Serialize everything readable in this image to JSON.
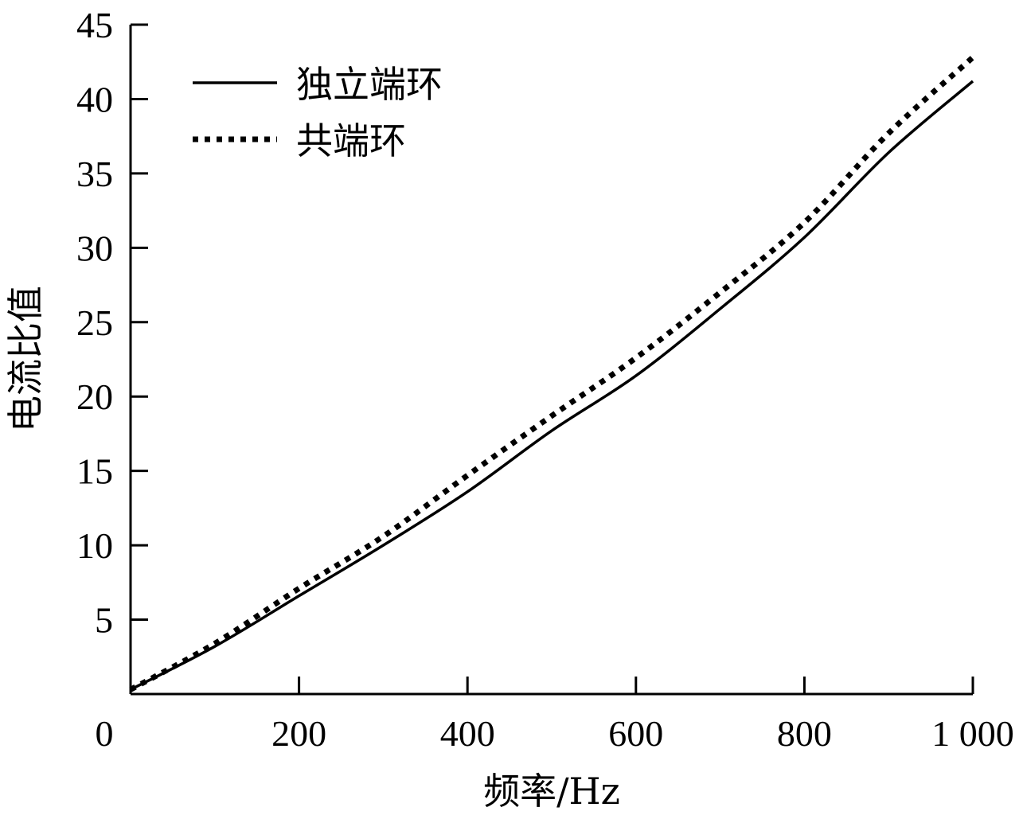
{
  "chart_data": {
    "type": "line",
    "title": "",
    "xlabel": "频率/Hz",
    "ylabel": "电流比值",
    "xlim": [
      0,
      1000
    ],
    "ylim": [
      0,
      45
    ],
    "grid": false,
    "legend_position": "upper-left",
    "x_ticks": [
      0,
      200,
      400,
      600,
      800,
      1000
    ],
    "x_tick_labels": [
      "0",
      "200",
      "400",
      "600",
      "800",
      "1 000"
    ],
    "y_ticks": [
      5,
      10,
      15,
      20,
      25,
      30,
      35,
      40,
      45
    ],
    "y_tick_labels": [
      "5",
      "10",
      "15",
      "20",
      "25",
      "30",
      "35",
      "40",
      "45"
    ],
    "x": [
      0,
      100,
      200,
      300,
      400,
      500,
      600,
      700,
      800,
      900,
      1000
    ],
    "series": [
      {
        "name": "独立端环",
        "style": "solid",
        "values": [
          0.3,
          3.2,
          6.6,
          10.0,
          13.6,
          17.7,
          21.4,
          25.9,
          30.7,
          36.4,
          41.2
        ]
      },
      {
        "name": "共端环",
        "style": "dotted",
        "values": [
          0.3,
          3.4,
          7.1,
          10.6,
          14.7,
          18.7,
          22.6,
          27.0,
          31.7,
          37.7,
          42.8
        ]
      }
    ]
  },
  "colors": {
    "line": "#000000",
    "background": "#ffffff"
  }
}
